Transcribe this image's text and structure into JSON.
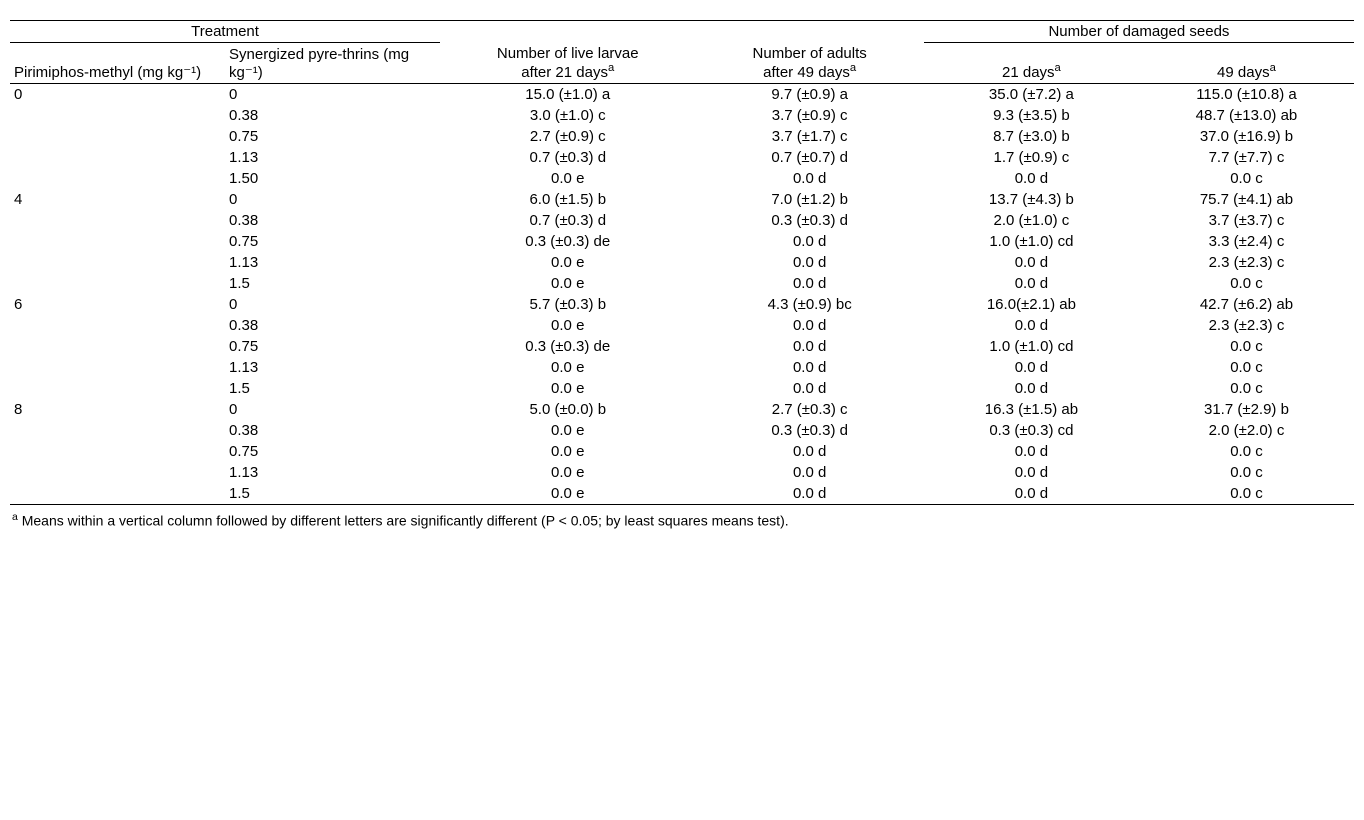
{
  "header": {
    "treatment": "Treatment",
    "col1": "Pirimiphos-methyl (mg kg⁻¹)",
    "col2": "Synergized pyre-thrins (mg kg⁻¹)",
    "col3_a": "Number of live larvae",
    "col3_b": "after 21 days",
    "col4_a": "Number of adults",
    "col4_b": "after 49 days",
    "damaged": "Number of damaged seeds",
    "col5": "21 days",
    "col6": "49 days",
    "sup": "a"
  },
  "rows": [
    {
      "pm": "0",
      "sp": "0",
      "l": "15.0 (±1.0) a",
      "a": "9.7 (±0.9) a",
      "d21": "35.0 (±7.2) a",
      "d49": "115.0 (±10.8) a"
    },
    {
      "pm": "",
      "sp": "0.38",
      "l": "3.0 (±1.0) c",
      "a": "3.7 (±0.9) c",
      "d21": "9.3 (±3.5) b",
      "d49": "48.7 (±13.0) ab"
    },
    {
      "pm": "",
      "sp": "0.75",
      "l": "2.7 (±0.9) c",
      "a": "3.7 (±1.7) c",
      "d21": "8.7 (±3.0) b",
      "d49": "37.0 (±16.9) b"
    },
    {
      "pm": "",
      "sp": "1.13",
      "l": "0.7 (±0.3) d",
      "a": "0.7 (±0.7) d",
      "d21": "1.7 (±0.9) c",
      "d49": "7.7 (±7.7) c"
    },
    {
      "pm": "",
      "sp": "1.50",
      "l": "0.0 e",
      "a": "0.0 d",
      "d21": "0.0 d",
      "d49": "0.0 c"
    },
    {
      "pm": "4",
      "sp": "0",
      "l": "6.0 (±1.5) b",
      "a": "7.0 (±1.2) b",
      "d21": "13.7 (±4.3) b",
      "d49": "75.7 (±4.1) ab"
    },
    {
      "pm": "",
      "sp": "0.38",
      "l": "0.7 (±0.3) d",
      "a": "0.3 (±0.3) d",
      "d21": "2.0 (±1.0) c",
      "d49": "3.7 (±3.7) c"
    },
    {
      "pm": "",
      "sp": "0.75",
      "l": "0.3 (±0.3) de",
      "a": "0.0 d",
      "d21": "1.0 (±1.0) cd",
      "d49": "3.3 (±2.4) c"
    },
    {
      "pm": "",
      "sp": "1.13",
      "l": "0.0 e",
      "a": "0.0 d",
      "d21": "0.0 d",
      "d49": "2.3 (±2.3) c"
    },
    {
      "pm": "",
      "sp": "1.5",
      "l": "0.0 e",
      "a": "0.0 d",
      "d21": "0.0 d",
      "d49": "0.0 c"
    },
    {
      "pm": "6",
      "sp": "0",
      "l": "5.7 (±0.3) b",
      "a": "4.3 (±0.9) bc",
      "d21": "16.0(±2.1) ab",
      "d49": "42.7 (±6.2) ab"
    },
    {
      "pm": "",
      "sp": "0.38",
      "l": "0.0 e",
      "a": "0.0 d",
      "d21": "0.0 d",
      "d49": "2.3 (±2.3) c"
    },
    {
      "pm": "",
      "sp": "0.75",
      "l": "0.3 (±0.3) de",
      "a": "0.0 d",
      "d21": "1.0 (±1.0) cd",
      "d49": "0.0 c"
    },
    {
      "pm": "",
      "sp": "1.13",
      "l": "0.0 e",
      "a": "0.0 d",
      "d21": "0.0 d",
      "d49": "0.0 c"
    },
    {
      "pm": "",
      "sp": "1.5",
      "l": "0.0 e",
      "a": "0.0 d",
      "d21": "0.0 d",
      "d49": "0.0 c"
    },
    {
      "pm": "8",
      "sp": "0",
      "l": "5.0 (±0.0) b",
      "a": "2.7 (±0.3) c",
      "d21": "16.3 (±1.5) ab",
      "d49": "31.7 (±2.9) b"
    },
    {
      "pm": "",
      "sp": "0.38",
      "l": "0.0 e",
      "a": "0.3 (±0.3) d",
      "d21": "0.3 (±0.3) cd",
      "d49": "2.0 (±2.0) c"
    },
    {
      "pm": "",
      "sp": "0.75",
      "l": "0.0 e",
      "a": "0.0 d",
      "d21": "0.0 d",
      "d49": "0.0 c"
    },
    {
      "pm": "",
      "sp": "1.13",
      "l": "0.0 e",
      "a": "0.0 d",
      "d21": "0.0 d",
      "d49": "0.0 c"
    },
    {
      "pm": "",
      "sp": "1.5",
      "l": "0.0 e",
      "a": "0.0 d",
      "d21": "0.0 d",
      "d49": "0.0 c"
    }
  ],
  "footnote_sup": "a",
  "footnote": " Means within a vertical column followed by different letters are significantly different (P < 0.05; by least squares means test).",
  "style": {
    "font": "Arial",
    "font_size_body": 15,
    "font_size_footnote": 14,
    "rule_color": "#000000",
    "bg": "#ffffff",
    "col_widths_pct": [
      16,
      16,
      19,
      17,
      16,
      16
    ]
  }
}
